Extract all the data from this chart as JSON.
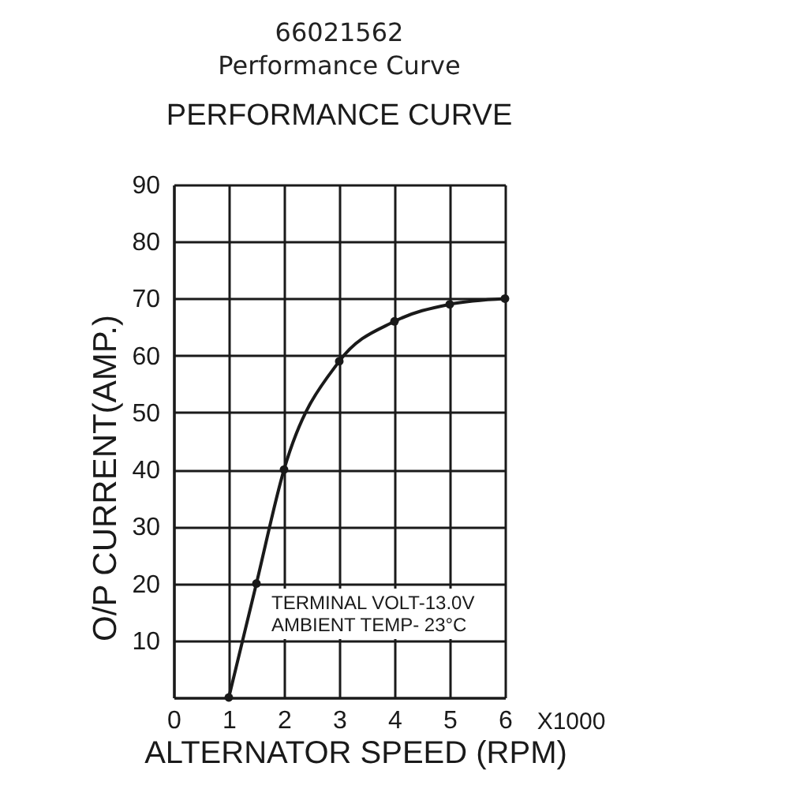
{
  "chart_data": {
    "type": "line",
    "title": "66021562",
    "subtitle": "Performance Curve",
    "xlabel": "ALTERNATOR SPEED (RPM)",
    "ylabel": "O/P CURRENT(AMP.)",
    "annotations": [
      "PERFORMANCE CURVE",
      "TERMINAL VOLT-13.0V",
      "AMBIENT TEMP- 23°C",
      "X1000"
    ],
    "x": [
      1,
      1.5,
      2,
      3,
      4,
      5,
      6
    ],
    "series": [
      {
        "color": "#1a1a1a",
        "values": [
          0,
          20,
          40,
          59,
          66,
          69,
          70
        ]
      }
    ],
    "xlim": [
      0,
      6
    ],
    "ylim": [
      0,
      90
    ],
    "xticks": [
      0,
      1,
      2,
      3,
      4,
      5,
      6
    ],
    "yticks": [
      {
        "value": 0,
        "label": null
      },
      10,
      20,
      30,
      40,
      50,
      60,
      70,
      80,
      90
    ],
    "grid": true,
    "marker": "circle",
    "line_style": "solid"
  }
}
